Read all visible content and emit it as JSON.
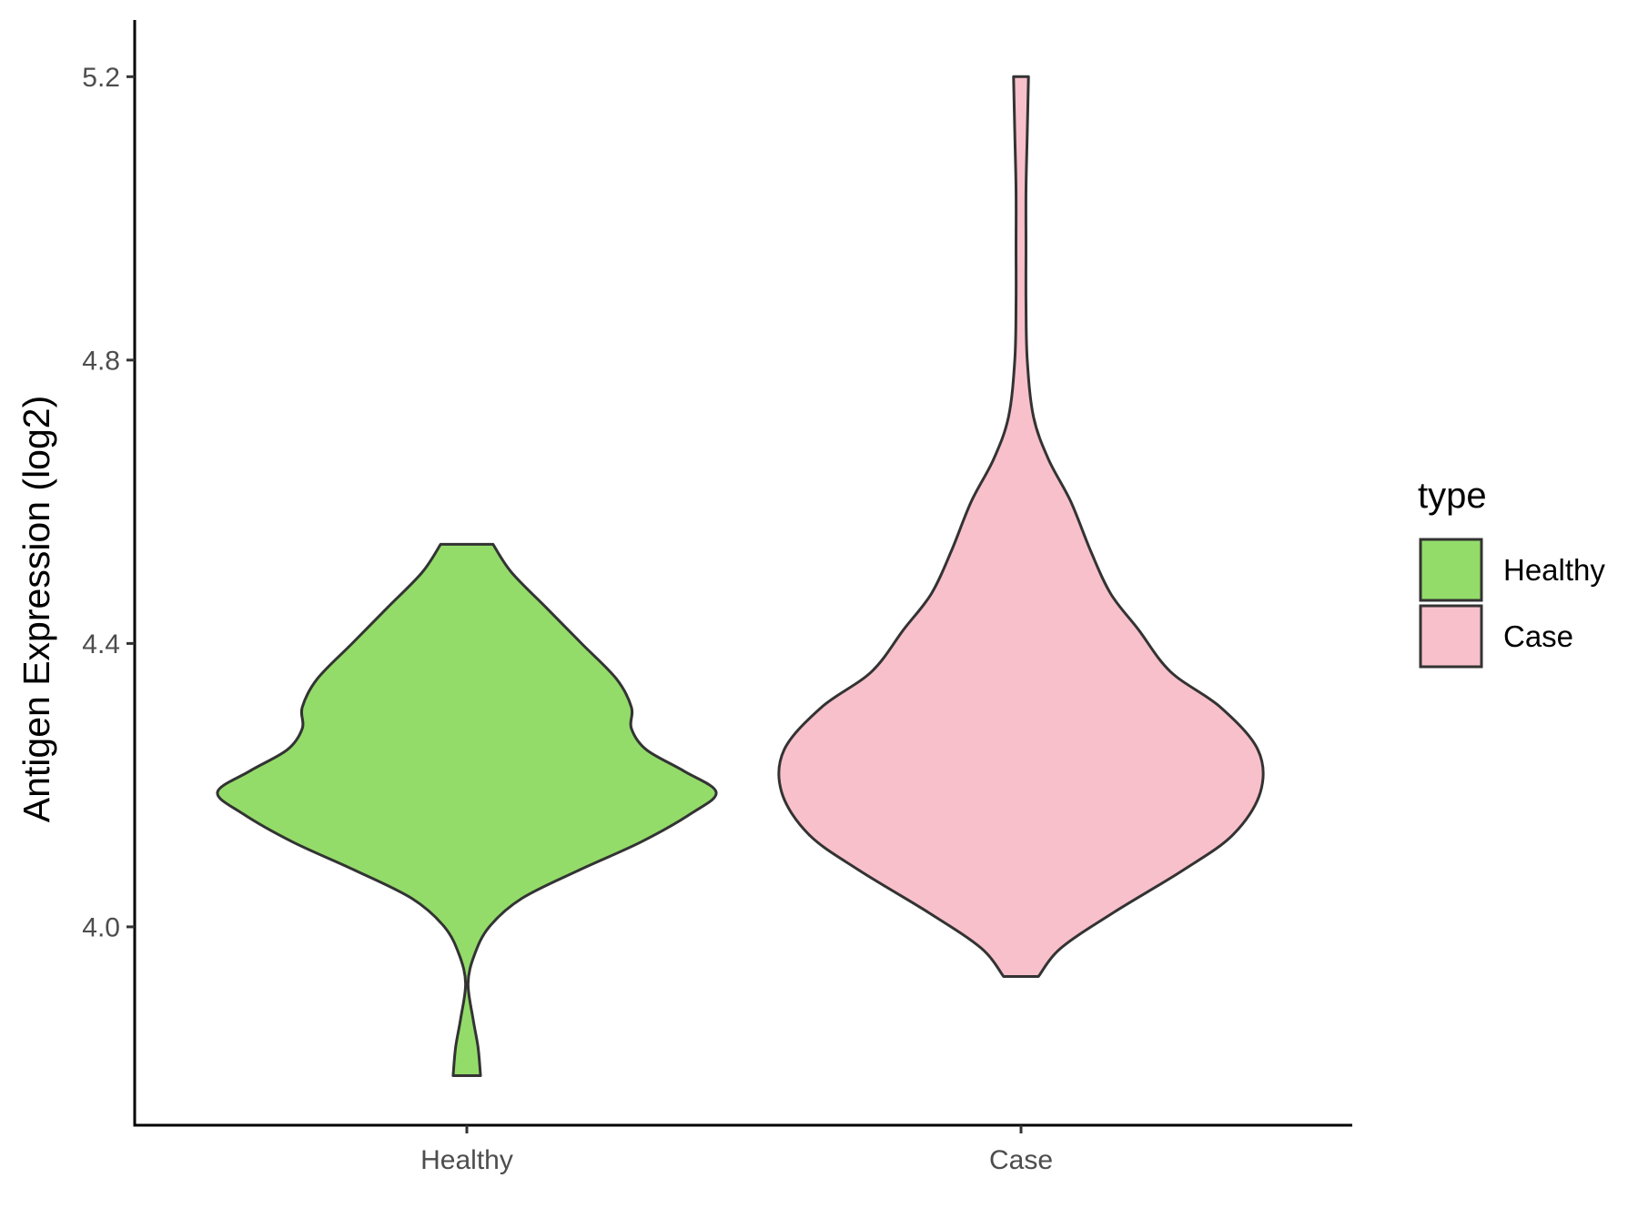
{
  "chart_data": {
    "type": "violin",
    "title": "",
    "xlabel": "",
    "ylabel": "Antigen Expression (log2)",
    "ylim": [
      3.72,
      5.28
    ],
    "yticks": [
      4.0,
      4.4,
      4.8,
      5.2
    ],
    "ytick_labels": [
      "4.0",
      "4.4",
      "4.8",
      "5.2"
    ],
    "grid": false,
    "categories": [
      "Healthy",
      "Case"
    ],
    "legend": {
      "title": "type",
      "position": "right",
      "entries": [
        {
          "label": "Healthy",
          "color": "#93dc6a"
        },
        {
          "label": "Case",
          "color": "#f8c0cb"
        }
      ]
    },
    "series": [
      {
        "category": "Healthy",
        "color": "#93dc6a",
        "min": 3.79,
        "max": 4.54,
        "density_profile": [
          [
            3.79,
            0.055
          ],
          [
            3.83,
            0.045
          ],
          [
            3.87,
            0.025
          ],
          [
            3.92,
            0.005
          ],
          [
            3.96,
            0.03
          ],
          [
            4.0,
            0.09
          ],
          [
            4.04,
            0.22
          ],
          [
            4.08,
            0.45
          ],
          [
            4.12,
            0.7
          ],
          [
            4.16,
            0.9
          ],
          [
            4.19,
            1.0
          ],
          [
            4.22,
            0.87
          ],
          [
            4.25,
            0.72
          ],
          [
            4.28,
            0.66
          ],
          [
            4.31,
            0.66
          ],
          [
            4.35,
            0.6
          ],
          [
            4.4,
            0.46
          ],
          [
            4.45,
            0.32
          ],
          [
            4.5,
            0.18
          ],
          [
            4.54,
            0.105
          ]
        ]
      },
      {
        "category": "Case",
        "color": "#f8c0cb",
        "min": 3.93,
        "max": 5.2,
        "density_profile": [
          [
            3.93,
            0.07
          ],
          [
            3.97,
            0.16
          ],
          [
            4.02,
            0.37
          ],
          [
            4.08,
            0.65
          ],
          [
            4.13,
            0.85
          ],
          [
            4.19,
            0.96
          ],
          [
            4.25,
            0.95
          ],
          [
            4.31,
            0.8
          ],
          [
            4.36,
            0.6
          ],
          [
            4.42,
            0.47
          ],
          [
            4.47,
            0.36
          ],
          [
            4.53,
            0.28
          ],
          [
            4.6,
            0.2
          ],
          [
            4.66,
            0.11
          ],
          [
            4.72,
            0.05
          ],
          [
            4.8,
            0.025
          ],
          [
            4.88,
            0.02
          ],
          [
            4.96,
            0.02
          ],
          [
            5.04,
            0.02
          ],
          [
            5.12,
            0.025
          ],
          [
            5.2,
            0.03
          ]
        ]
      }
    ]
  }
}
